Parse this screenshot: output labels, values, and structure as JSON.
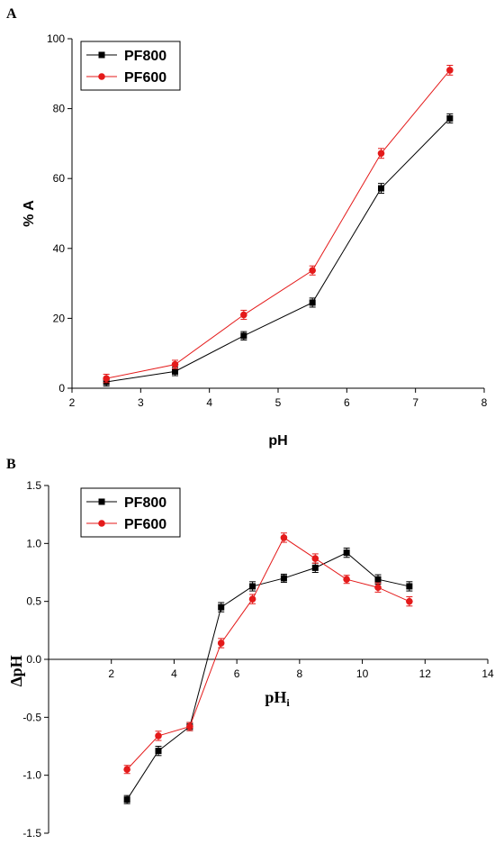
{
  "chart_data": [
    {
      "panel": "A",
      "type": "line",
      "xlabel": "pH",
      "ylabel": "% A",
      "xlim": [
        2,
        8
      ],
      "ylim": [
        0,
        100
      ],
      "xticks": [
        2,
        3,
        4,
        5,
        6,
        7,
        8
      ],
      "yticks": [
        0,
        20,
        40,
        60,
        80,
        100
      ],
      "legend": "top-left",
      "grid": false,
      "series": [
        {
          "name": "PF800",
          "color": "#000000",
          "marker": "square",
          "x": [
            2.5,
            3.5,
            4.5,
            5.5,
            6.5,
            7.5
          ],
          "y": [
            1.8,
            4.8,
            15.0,
            24.5,
            57.2,
            77.2
          ],
          "err": [
            1.2,
            1.2,
            1.2,
            1.3,
            1.4,
            1.3
          ]
        },
        {
          "name": "PF600",
          "color": "#e41a1a",
          "marker": "circle",
          "x": [
            2.5,
            3.5,
            4.5,
            5.5,
            6.5,
            7.5
          ],
          "y": [
            2.8,
            6.8,
            21.0,
            33.7,
            67.2,
            91.0
          ],
          "err": [
            1.2,
            1.2,
            1.3,
            1.3,
            1.4,
            1.4
          ]
        }
      ]
    },
    {
      "panel": "B",
      "type": "line",
      "xlabel": "pH",
      "xlabel_sub": "i",
      "ylabel": "∆pH",
      "xlim": [
        0,
        14
      ],
      "ylim": [
        -1.5,
        1.5
      ],
      "xticks": [
        2,
        4,
        6,
        8,
        10,
        12,
        14
      ],
      "yticks": [
        -1.5,
        -1.0,
        -0.5,
        0.0,
        0.5,
        1.0,
        1.5
      ],
      "ytick_labels": [
        "-1.5",
        "-1.0",
        "-0.5",
        "0.0",
        "0.5",
        "1.0",
        "1.5"
      ],
      "legend": "top-left",
      "grid": false,
      "series": [
        {
          "name": "PF800",
          "color": "#000000",
          "marker": "square",
          "x": [
            2.5,
            3.5,
            4.5,
            5.5,
            6.5,
            7.5,
            8.5,
            9.5,
            10.5,
            11.5
          ],
          "y": [
            -1.21,
            -0.79,
            -0.58,
            0.45,
            0.63,
            0.7,
            0.79,
            0.92,
            0.69,
            0.63
          ],
          "err": [
            0.035,
            0.04,
            0.035,
            0.04,
            0.04,
            0.035,
            0.04,
            0.04,
            0.04,
            0.04
          ]
        },
        {
          "name": "PF600",
          "color": "#e41a1a",
          "marker": "circle",
          "x": [
            2.5,
            3.5,
            4.5,
            5.5,
            6.5,
            7.5,
            8.5,
            9.5,
            10.5,
            11.5
          ],
          "y": [
            -0.95,
            -0.66,
            -0.58,
            0.14,
            0.52,
            1.05,
            0.87,
            0.69,
            0.62,
            0.5
          ],
          "err": [
            0.035,
            0.04,
            0.035,
            0.04,
            0.04,
            0.04,
            0.04,
            0.035,
            0.04,
            0.04
          ]
        }
      ]
    }
  ]
}
